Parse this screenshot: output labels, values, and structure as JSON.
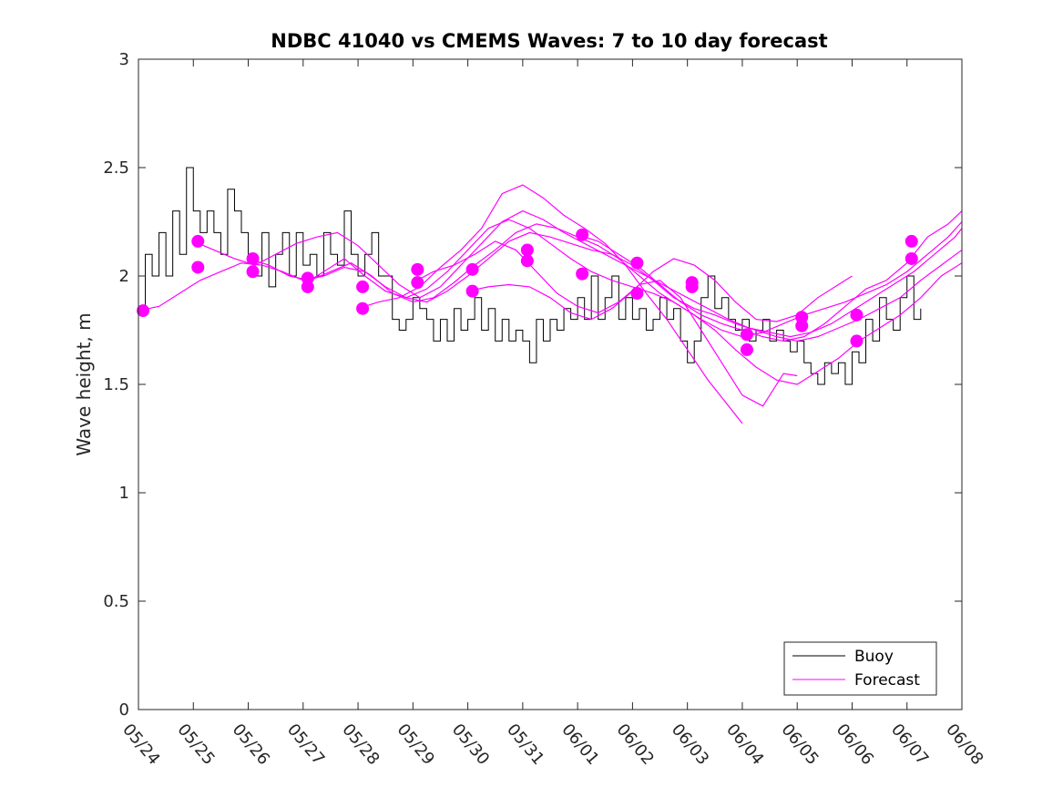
{
  "chart_data": {
    "type": "line",
    "title": "NDBC 41040 vs CMEMS Waves: 7 to 10 day forecast",
    "xlabel": "",
    "ylabel": "Wave height, m",
    "x_unit": "day",
    "xlim": [
      "05/24",
      "06/08"
    ],
    "x_tick_labels": [
      "05/24",
      "05/25",
      "05/26",
      "05/27",
      "05/28",
      "05/29",
      "05/30",
      "05/31",
      "06/01",
      "06/02",
      "06/03",
      "06/04",
      "06/05",
      "06/06",
      "06/07",
      "06/08"
    ],
    "ylim": [
      0,
      3
    ],
    "y_ticks": [
      0,
      0.5,
      1,
      1.5,
      2,
      2.5,
      3
    ],
    "y_tick_labels": [
      "0",
      "0.5",
      "1",
      "1.5",
      "2",
      "2.5",
      "3"
    ],
    "grid": false,
    "legend": {
      "placement": "bottom-right",
      "entries": [
        "Buoy",
        "Forecast"
      ]
    },
    "colors": {
      "buoy": "#000000",
      "forecast": "#ff00ff"
    },
    "series": [
      {
        "name": "Buoy",
        "kind": "line",
        "x": [
          "05/24 00:00",
          "05/24 03:00",
          "05/24 06:00",
          "05/24 09:00",
          "05/24 12:00",
          "05/24 15:00",
          "05/24 18:00",
          "05/24 21:00",
          "05/25 00:00",
          "05/25 03:00",
          "05/25 06:00",
          "05/25 09:00",
          "05/25 12:00",
          "05/25 15:00",
          "05/25 18:00",
          "05/25 21:00",
          "05/26 00:00",
          "05/26 03:00",
          "05/26 06:00",
          "05/26 09:00",
          "05/26 12:00",
          "05/26 15:00",
          "05/26 18:00",
          "05/26 21:00",
          "05/27 00:00",
          "05/27 03:00",
          "05/27 06:00",
          "05/27 09:00",
          "05/27 12:00",
          "05/27 15:00",
          "05/27 18:00",
          "05/27 21:00",
          "05/28 00:00",
          "05/28 03:00",
          "05/28 06:00",
          "05/28 09:00",
          "05/28 12:00",
          "05/28 15:00",
          "05/28 18:00",
          "05/28 21:00",
          "05/29 00:00",
          "05/29 03:00",
          "05/29 06:00",
          "05/29 09:00",
          "05/29 12:00",
          "05/29 15:00",
          "05/29 18:00",
          "05/29 21:00",
          "05/30 00:00",
          "05/30 03:00",
          "05/30 06:00",
          "05/30 09:00",
          "05/30 12:00",
          "05/30 15:00",
          "05/30 18:00",
          "05/30 21:00",
          "05/31 00:00",
          "05/31 03:00",
          "05/31 06:00",
          "05/31 09:00",
          "05/31 12:00",
          "05/31 15:00",
          "05/31 18:00",
          "05/31 21:00",
          "06/01 00:00",
          "06/01 03:00",
          "06/01 06:00",
          "06/01 09:00",
          "06/01 12:00",
          "06/01 15:00",
          "06/01 18:00",
          "06/01 21:00",
          "06/02 00:00",
          "06/02 03:00",
          "06/02 06:00",
          "06/02 09:00",
          "06/02 12:00",
          "06/02 15:00",
          "06/02 18:00",
          "06/02 21:00",
          "06/03 00:00",
          "06/03 03:00",
          "06/03 06:00",
          "06/03 09:00",
          "06/03 12:00",
          "06/03 15:00",
          "06/03 18:00",
          "06/03 21:00",
          "06/04 00:00",
          "06/04 03:00",
          "06/04 06:00",
          "06/04 09:00",
          "06/04 12:00",
          "06/04 15:00",
          "06/04 18:00",
          "06/04 21:00",
          "06/05 00:00",
          "06/05 03:00",
          "06/05 06:00",
          "06/05 09:00",
          "06/05 12:00",
          "06/05 15:00",
          "06/05 18:00",
          "06/05 21:00",
          "06/06 00:00",
          "06/06 03:00",
          "06/06 06:00",
          "06/06 09:00",
          "06/06 12:00",
          "06/06 15:00",
          "06/06 18:00",
          "06/06 21:00",
          "06/07 00:00",
          "06/07 03:00",
          "06/07 06:00"
        ],
        "y": [
          1.85,
          2.1,
          2.0,
          2.2,
          2.0,
          2.3,
          2.1,
          2.5,
          2.3,
          2.2,
          2.3,
          2.2,
          2.1,
          2.4,
          2.3,
          2.2,
          2.1,
          2.0,
          2.2,
          1.95,
          2.1,
          2.2,
          2.0,
          2.2,
          2.05,
          2.1,
          2.0,
          2.2,
          2.1,
          2.05,
          2.3,
          2.1,
          2.0,
          2.1,
          2.2,
          2.0,
          2.0,
          1.8,
          1.75,
          1.8,
          1.9,
          1.85,
          1.8,
          1.7,
          1.8,
          1.7,
          1.85,
          1.75,
          1.8,
          1.9,
          1.75,
          1.85,
          1.7,
          1.8,
          1.7,
          1.75,
          1.7,
          1.6,
          1.8,
          1.7,
          1.8,
          1.75,
          1.85,
          1.8,
          1.9,
          1.8,
          2.0,
          1.8,
          1.9,
          2.0,
          1.8,
          1.9,
          1.8,
          1.85,
          1.75,
          1.8,
          1.9,
          1.8,
          1.85,
          1.7,
          1.6,
          1.7,
          1.9,
          2.0,
          1.85,
          1.9,
          1.8,
          1.75,
          1.8,
          1.7,
          1.75,
          1.8,
          1.7,
          1.75,
          1.7,
          1.65,
          1.7,
          1.6,
          1.55,
          1.5,
          1.6,
          1.55,
          1.6,
          1.5,
          1.65,
          1.6,
          1.8,
          1.7,
          1.9,
          1.8,
          1.75,
          1.9,
          2.0,
          1.8,
          1.85
        ]
      },
      {
        "name": "Forecast",
        "kind": "lines",
        "runs": [
          {
            "x": [
              "05/24 00:00",
              "05/24 09:00",
              "05/24 18:00",
              "05/25 03:00",
              "05/25 12:00",
              "05/25 21:00",
              "05/26 06:00",
              "05/26 15:00",
              "05/27 00:00",
              "05/27 09:00",
              "05/27 18:00",
              "05/28 03:00",
              "05/28 12:00",
              "05/28 21:00",
              "05/29 06:00",
              "05/29 15:00",
              "05/30 00:00",
              "05/30 09:00",
              "05/30 18:00",
              "05/31 03:00",
              "05/31 12:00",
              "05/31 21:00",
              "06/01 06:00",
              "06/01 15:00",
              "06/02 00:00",
              "06/02 09:00",
              "06/02 18:00",
              "06/03 03:00",
              "06/03 12:00",
              "06/03 21:00",
              "06/04 06:00",
              "06/04 15:00",
              "06/05 00:00",
              "06/05 09:00",
              "06/05 18:00",
              "06/06 03:00",
              "06/06 12:00",
              "06/06 21:00",
              "06/07 06:00",
              "06/07 15:00",
              "06/08 00:00"
            ],
            "y": [
              1.84,
              1.86,
              1.92,
              1.98,
              2.02,
              2.06,
              2.05,
              2.02,
              1.98,
              2.0,
              2.04,
              2.02,
              1.95,
              1.9,
              1.88,
              1.93,
              2.0,
              2.08,
              2.16,
              2.2,
              2.18,
              2.15,
              2.12,
              2.1,
              2.05,
              1.98,
              1.9,
              1.85,
              1.82,
              1.78,
              1.75,
              1.72,
              1.7,
              1.72,
              1.76,
              1.8,
              1.85,
              1.9,
              1.98,
              2.05,
              2.12
            ]
          },
          {
            "x": [
              "05/25 00:00",
              "05/25 09:00",
              "05/25 18:00",
              "05/26 03:00",
              "05/26 12:00",
              "05/26 21:00",
              "05/27 06:00",
              "05/27 15:00",
              "05/28 00:00",
              "05/28 09:00",
              "05/28 18:00",
              "05/29 03:00",
              "05/29 12:00",
              "05/29 21:00",
              "05/30 06:00",
              "05/30 15:00",
              "05/31 00:00",
              "05/31 09:00",
              "05/31 18:00",
              "06/01 03:00",
              "06/01 12:00",
              "06/01 21:00",
              "06/02 06:00",
              "06/02 15:00",
              "06/03 00:00",
              "06/03 09:00",
              "06/03 18:00",
              "06/04 03:00",
              "06/04 12:00",
              "06/04 21:00",
              "06/05 06:00",
              "06/05 15:00",
              "06/06 00:00",
              "06/06 09:00",
              "06/06 18:00",
              "06/07 03:00",
              "06/07 12:00",
              "06/07 21:00",
              "06/08 00:00"
            ],
            "y": [
              2.16,
              2.12,
              2.08,
              2.05,
              2.1,
              2.15,
              2.18,
              2.2,
              2.14,
              2.05,
              1.96,
              1.9,
              1.95,
              2.05,
              2.15,
              2.25,
              2.3,
              2.26,
              2.2,
              2.15,
              2.1,
              2.05,
              2.0,
              1.95,
              1.9,
              1.85,
              1.8,
              1.76,
              1.74,
              1.72,
              1.74,
              1.78,
              1.84,
              1.9,
              1.96,
              2.02,
              2.1,
              2.18,
              2.22
            ]
          },
          {
            "x": [
              "05/26 00:00",
              "05/26 09:00",
              "05/26 18:00",
              "05/27 03:00",
              "05/27 12:00",
              "05/27 21:00",
              "05/28 06:00",
              "05/28 15:00",
              "05/29 00:00",
              "05/29 09:00",
              "05/29 18:00",
              "05/30 03:00",
              "05/30 12:00",
              "05/30 21:00",
              "05/31 06:00",
              "05/31 15:00",
              "06/01 00:00",
              "06/01 09:00",
              "06/01 18:00",
              "06/02 03:00",
              "06/02 12:00",
              "06/02 21:00",
              "06/03 06:00",
              "06/03 15:00",
              "06/04 00:00",
              "06/04 09:00",
              "06/04 18:00",
              "06/05 03:00",
              "06/05 12:00",
              "06/05 21:00",
              "06/06 06:00",
              "06/06 15:00",
              "06/07 00:00",
              "06/07 09:00",
              "06/07 18:00",
              "06/08 00:00"
            ],
            "y": [
              2.08,
              2.05,
              2.0,
              1.98,
              2.02,
              2.06,
              2.0,
              1.92,
              1.88,
              1.9,
              1.97,
              2.05,
              2.12,
              2.2,
              2.24,
              2.22,
              2.18,
              2.14,
              2.08,
              2.0,
              1.92,
              1.86,
              1.8,
              1.75,
              1.72,
              1.74,
              1.78,
              1.82,
              1.85,
              1.88,
              1.92,
              1.96,
              2.02,
              2.1,
              2.18,
              2.25
            ]
          },
          {
            "x": [
              "05/27 00:00",
              "05/27 09:00",
              "05/27 18:00",
              "05/28 03:00",
              "05/28 12:00",
              "05/28 21:00",
              "05/29 06:00",
              "05/29 15:00",
              "05/30 00:00",
              "05/30 09:00",
              "05/30 18:00",
              "05/31 03:00",
              "05/31 12:00",
              "05/31 21:00",
              "06/01 06:00",
              "06/01 15:00",
              "06/02 00:00",
              "06/02 09:00",
              "06/02 18:00",
              "06/03 03:00",
              "06/03 12:00",
              "06/03 21:00",
              "06/04 06:00",
              "06/04 15:00",
              "06/05 00:00",
              "06/05 09:00",
              "06/05 18:00",
              "06/06 03:00",
              "06/06 12:00",
              "06/06 21:00",
              "06/07 06:00",
              "06/07 15:00",
              "06/08 00:00"
            ],
            "y": [
              1.96,
              2.02,
              2.08,
              2.0,
              1.93,
              1.9,
              1.94,
              2.02,
              2.12,
              2.22,
              2.26,
              2.22,
              2.15,
              2.08,
              2.02,
              1.98,
              1.95,
              1.92,
              1.88,
              1.82,
              1.75,
              1.66,
              1.58,
              1.52,
              1.5,
              1.56,
              1.62,
              1.7,
              1.76,
              1.82,
              1.9,
              2.0,
              2.06
            ]
          },
          {
            "x": [
              "05/28 00:00",
              "05/28 09:00",
              "05/28 18:00",
              "05/29 03:00",
              "05/29 12:00",
              "05/29 21:00",
              "05/30 06:00",
              "05/30 15:00",
              "05/31 00:00",
              "05/31 09:00",
              "05/31 18:00",
              "06/01 03:00",
              "06/01 12:00",
              "06/01 21:00",
              "06/02 06:00",
              "06/02 15:00",
              "06/03 00:00",
              "06/03 09:00",
              "06/03 18:00",
              "06/04 00:00"
            ],
            "y": [
              1.85,
              1.88,
              1.9,
              1.95,
              2.04,
              2.12,
              2.22,
              2.38,
              2.42,
              2.36,
              2.28,
              2.22,
              2.15,
              2.05,
              1.92,
              1.8,
              1.66,
              1.52,
              1.4,
              1.32
            ]
          },
          {
            "x": [
              "05/29 00:00",
              "05/29 09:00",
              "05/29 18:00",
              "05/30 03:00",
              "05/30 12:00",
              "05/30 21:00",
              "05/31 06:00",
              "05/31 15:00",
              "06/01 00:00",
              "06/01 09:00",
              "06/01 18:00",
              "06/02 03:00",
              "06/02 12:00",
              "06/02 21:00",
              "06/03 06:00",
              "06/03 15:00",
              "06/04 00:00",
              "06/04 09:00",
              "06/04 18:00",
              "06/05 00:00"
            ],
            "y": [
              1.97,
              2.02,
              2.05,
              2.1,
              2.16,
              2.12,
              2.02,
              1.92,
              1.86,
              1.83,
              1.88,
              1.96,
              1.98,
              1.9,
              1.75,
              1.6,
              1.45,
              1.4,
              1.55,
              1.54
            ]
          },
          {
            "x": [
              "05/30 00:00",
              "05/30 09:00",
              "05/30 18:00",
              "05/31 03:00",
              "05/31 12:00",
              "05/31 21:00",
              "06/01 06:00",
              "06/01 15:00",
              "06/02 00:00",
              "06/02 09:00",
              "06/02 18:00",
              "06/03 03:00",
              "06/03 12:00",
              "06/03 21:00",
              "06/04 06:00",
              "06/04 15:00",
              "06/05 00:00",
              "06/05 09:00",
              "06/05 18:00",
              "06/06 00:00"
            ],
            "y": [
              1.93,
              1.95,
              1.96,
              1.95,
              1.9,
              1.83,
              1.8,
              1.85,
              1.93,
              2.02,
              2.08,
              2.05,
              1.98,
              1.88,
              1.8,
              1.79,
              1.82,
              1.9,
              1.96,
              2.0
            ]
          },
          {
            "x": [
              "06/01 00:00",
              "06/01 09:00",
              "06/01 18:00",
              "06/02 03:00",
              "06/02 12:00",
              "06/02 21:00",
              "06/03 06:00",
              "06/03 15:00",
              "06/04 00:00",
              "06/04 09:00",
              "06/04 18:00",
              "06/05 03:00",
              "06/05 12:00",
              "06/05 21:00",
              "06/06 06:00",
              "06/06 15:00",
              "06/07 00:00",
              "06/07 09:00",
              "06/07 18:00",
              "06/08 00:00"
            ],
            "y": [
              2.19,
              2.16,
              2.1,
              2.04,
              1.96,
              1.88,
              1.82,
              1.78,
              1.75,
              1.72,
              1.7,
              1.72,
              1.78,
              1.86,
              1.94,
              1.98,
              2.06,
              2.18,
              2.24,
              2.3
            ]
          }
        ]
      },
      {
        "name": "Forecast",
        "kind": "markers",
        "x": [
          "05/24 02:00",
          "05/25 02:00",
          "05/25 02:00",
          "05/26 02:00",
          "05/26 02:00",
          "05/27 02:00",
          "05/27 02:00",
          "05/28 02:00",
          "05/28 02:00",
          "05/29 02:00",
          "05/29 02:00",
          "05/30 02:00",
          "05/30 02:00",
          "05/31 02:00",
          "05/31 02:00",
          "06/01 02:00",
          "06/01 02:00",
          "06/02 02:00",
          "06/02 02:00",
          "06/03 02:00",
          "06/03 02:00",
          "06/04 02:00",
          "06/04 02:00",
          "06/05 02:00",
          "06/05 02:00",
          "06/06 02:00",
          "06/06 02:00",
          "06/07 02:00",
          "06/07 02:00"
        ],
        "y": [
          1.84,
          2.16,
          2.04,
          2.08,
          2.02,
          1.99,
          1.95,
          1.95,
          1.85,
          2.03,
          1.97,
          2.03,
          1.93,
          2.12,
          2.07,
          2.19,
          2.01,
          2.06,
          1.92,
          1.97,
          1.95,
          1.73,
          1.66,
          1.81,
          1.77,
          1.82,
          1.7,
          2.16,
          2.08
        ]
      }
    ]
  }
}
